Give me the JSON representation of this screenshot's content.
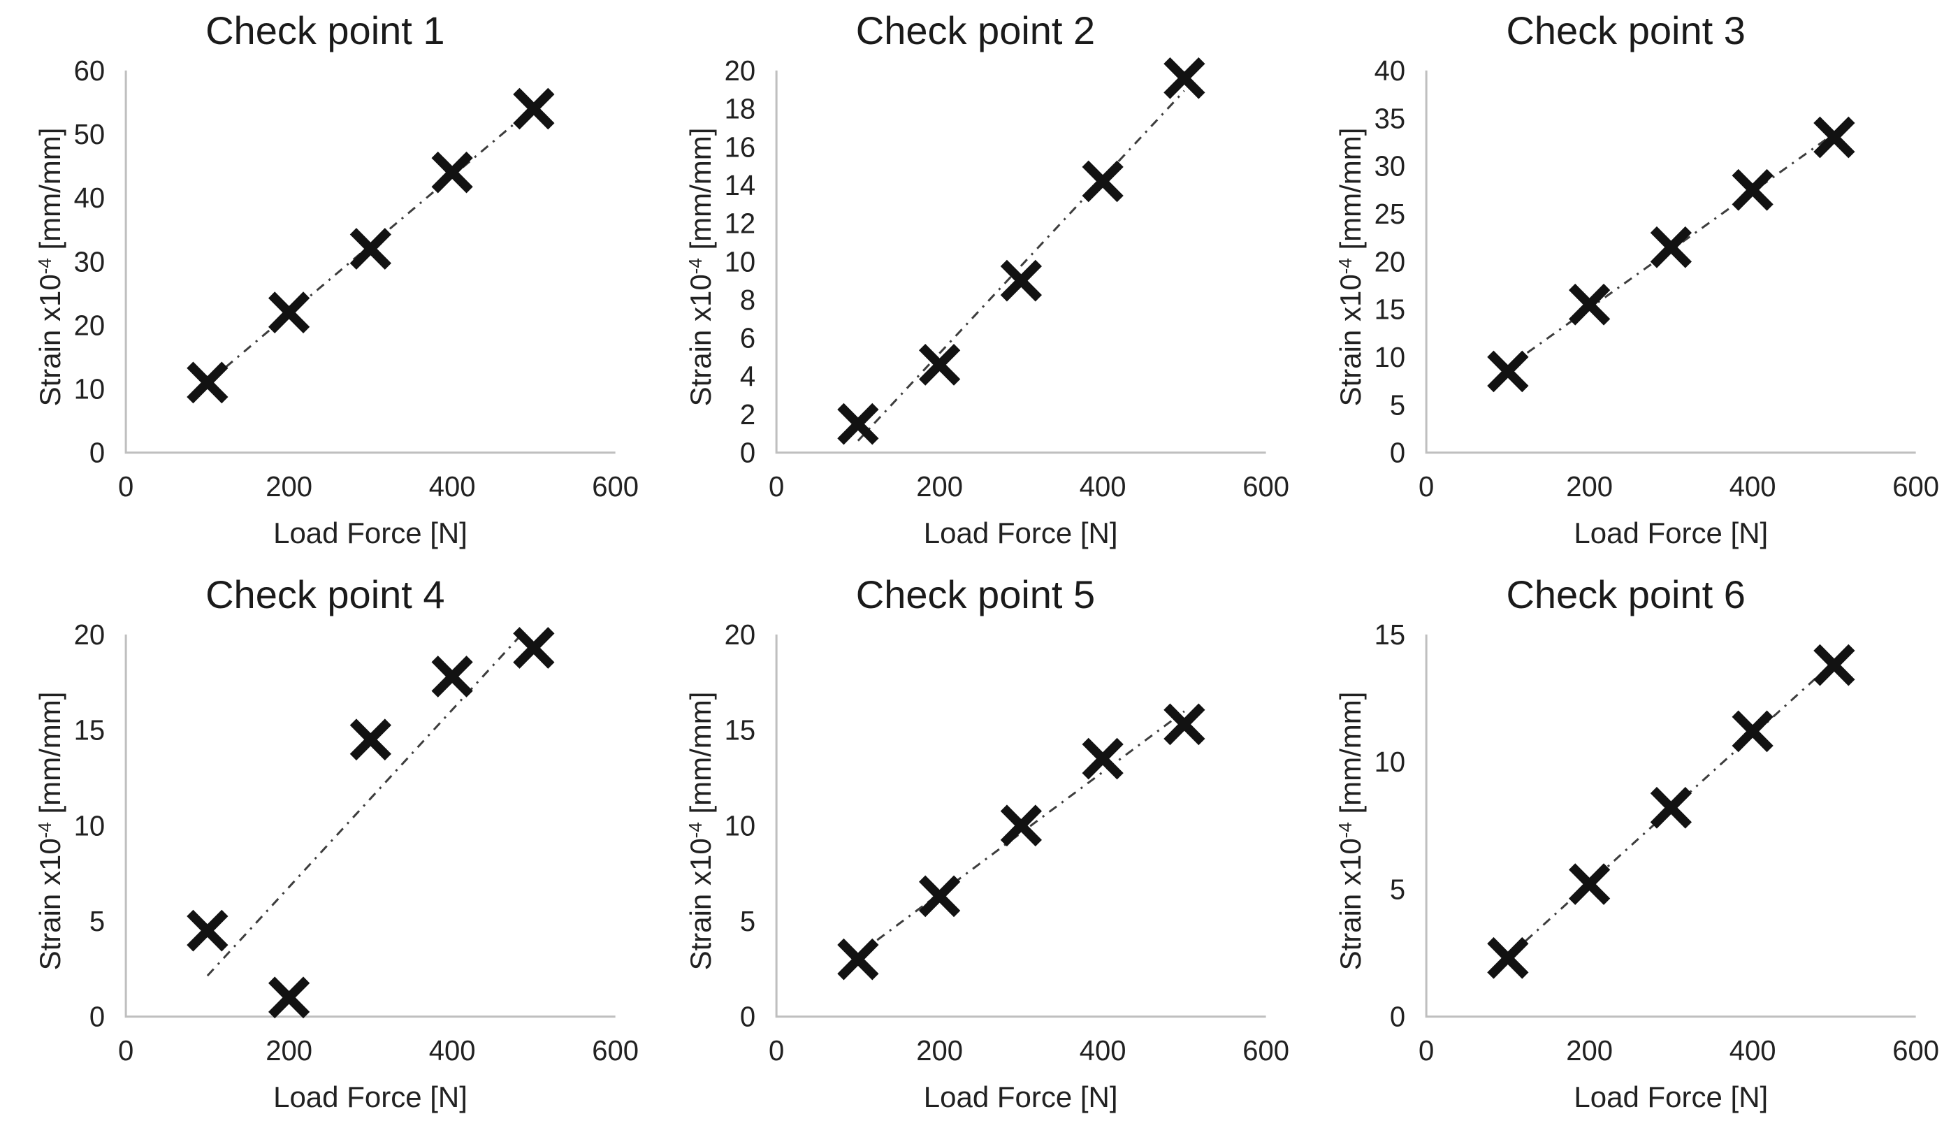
{
  "page": {
    "background": "#ffffff"
  },
  "colors": {
    "axis": "#bfbfbf",
    "text": "#212121",
    "title": "#1a1a1a",
    "marker": "#121212",
    "trendline": "#3d3d3d"
  },
  "chart_data": [
    {
      "type": "scatter",
      "title": "Check point 1",
      "xlabel": "Load Force [N]",
      "ylabel": "Strain x10⁻⁴ [mm/mm]",
      "ylabel_parts": {
        "base": "Strain x10",
        "sup": "-4",
        "unit": " [mm/mm]"
      },
      "x": [
        100,
        200,
        300,
        400,
        500
      ],
      "y": [
        11,
        22,
        32,
        44,
        54
      ],
      "xlim": [
        0,
        600
      ],
      "ylim": [
        0,
        60
      ],
      "xticks": [
        0,
        200,
        400,
        600
      ],
      "yticks": [
        0,
        10,
        20,
        30,
        40,
        50,
        60
      ],
      "marker": "x",
      "trendline": "linear dash-dot",
      "grid": false,
      "legend": "none"
    },
    {
      "type": "scatter",
      "title": "Check point 2",
      "xlabel": "Load Force [N]",
      "ylabel": "Strain x10⁻⁴ [mm/mm]",
      "ylabel_parts": {
        "base": "Strain x10",
        "sup": "-4",
        "unit": " [mm/mm]"
      },
      "x": [
        100,
        200,
        300,
        400,
        500
      ],
      "y": [
        1.5,
        4.6,
        9,
        14.2,
        19.6
      ],
      "xlim": [
        0,
        600
      ],
      "ylim": [
        0,
        20
      ],
      "xticks": [
        0,
        200,
        400,
        600
      ],
      "yticks": [
        0,
        2,
        4,
        6,
        8,
        10,
        12,
        14,
        16,
        18,
        20
      ],
      "marker": "x",
      "trendline": "linear dash-dot",
      "grid": false,
      "legend": "none"
    },
    {
      "type": "scatter",
      "title": "Check point 3",
      "xlabel": "Load Force [N]",
      "ylabel": "Strain x10⁻⁴ [mm/mm]",
      "ylabel_parts": {
        "base": "Strain x10",
        "sup": "-4",
        "unit": " [mm/mm]"
      },
      "x": [
        100,
        200,
        300,
        400,
        500
      ],
      "y": [
        8.5,
        15.5,
        21.5,
        27.5,
        33
      ],
      "xlim": [
        0,
        600
      ],
      "ylim": [
        0,
        40
      ],
      "xticks": [
        0,
        200,
        400,
        600
      ],
      "yticks": [
        0,
        5,
        10,
        15,
        20,
        25,
        30,
        35,
        40
      ],
      "marker": "x",
      "trendline": "linear dash-dot",
      "grid": false,
      "legend": "none"
    },
    {
      "type": "scatter",
      "title": "Check point 4",
      "xlabel": "Load Force [N]",
      "ylabel": "Strain x10⁻⁴ [mm/mm]",
      "ylabel_parts": {
        "base": "Strain x10",
        "sup": "-4",
        "unit": " [mm/mm]"
      },
      "x": [
        100,
        200,
        300,
        400,
        500
      ],
      "y": [
        4.5,
        1,
        14.5,
        17.8,
        19.3
      ],
      "xlim": [
        0,
        600
      ],
      "ylim": [
        0,
        20
      ],
      "xticks": [
        0,
        200,
        400,
        600
      ],
      "yticks": [
        0,
        5,
        10,
        15,
        20
      ],
      "marker": "x",
      "trendline": "linear dash-dot",
      "grid": false,
      "legend": "none"
    },
    {
      "type": "scatter",
      "title": "Check point 5",
      "xlabel": "Load Force [N]",
      "ylabel": "Strain x10⁻⁴ [mm/mm]",
      "ylabel_parts": {
        "base": "Strain x10",
        "sup": "-4",
        "unit": " [mm/mm]"
      },
      "x": [
        100,
        200,
        300,
        400,
        500
      ],
      "y": [
        3,
        6.3,
        10,
        13.5,
        15.3
      ],
      "xlim": [
        0,
        600
      ],
      "ylim": [
        0,
        20
      ],
      "xticks": [
        0,
        200,
        400,
        600
      ],
      "yticks": [
        0,
        5,
        10,
        15,
        20
      ],
      "marker": "x",
      "trendline": "linear dash-dot",
      "grid": false,
      "legend": "none"
    },
    {
      "type": "scatter",
      "title": "Check point 6",
      "xlabel": "Load Force [N]",
      "ylabel": "Strain x10⁻⁴ [mm/mm]",
      "ylabel_parts": {
        "base": "Strain x10",
        "sup": "-4",
        "unit": " [mm/mm]"
      },
      "x": [
        100,
        200,
        300,
        400,
        500
      ],
      "y": [
        2.3,
        5.2,
        8.2,
        11.2,
        13.8
      ],
      "xlim": [
        0,
        600
      ],
      "ylim": [
        0,
        15
      ],
      "xticks": [
        0,
        200,
        400,
        600
      ],
      "yticks": [
        0,
        5,
        10,
        15
      ],
      "marker": "x",
      "trendline": "linear dash-dot",
      "grid": false,
      "legend": "none"
    }
  ]
}
